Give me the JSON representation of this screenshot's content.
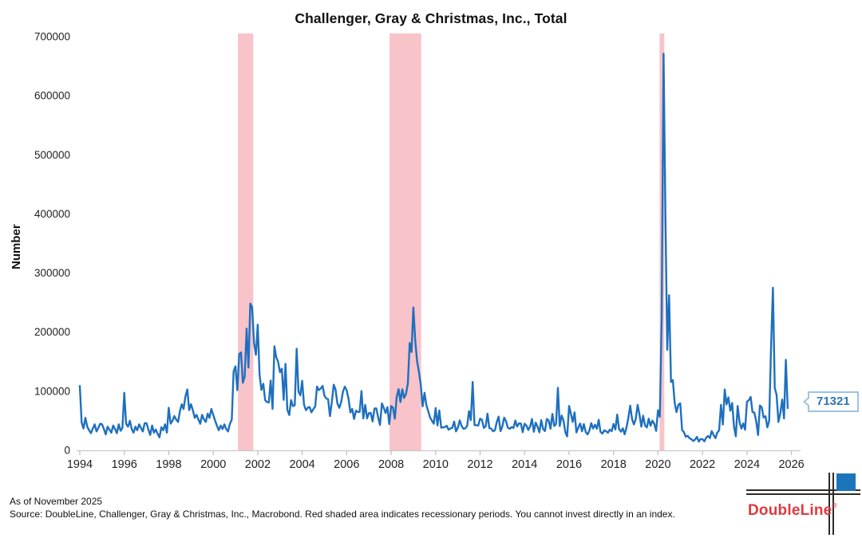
{
  "chart_data": {
    "type": "line",
    "title": "Challenger, Gray & Christmas, Inc., Total",
    "xlabel": "",
    "ylabel": "Number",
    "grid": false,
    "legend": "none",
    "frequency": "monthly",
    "x_start": "1994-01",
    "x_end": "2025-11",
    "xlim": [
      1994,
      2026.41
    ],
    "ylim": [
      0,
      700000
    ],
    "x_tick_labels": [
      "1994",
      "1996",
      "1998",
      "2000",
      "2002",
      "2004",
      "2006",
      "2008",
      "2010",
      "2012",
      "2014",
      "2016",
      "2018",
      "2020",
      "2022",
      "2024",
      "2026"
    ],
    "y_ticks": [
      0,
      100000,
      200000,
      300000,
      400000,
      500000,
      600000,
      700000
    ],
    "line_color": "#1e70bf",
    "recession_band_color": "#f8c3c9",
    "recession_bands": [
      {
        "start": 2001.11,
        "end": 2001.8
      },
      {
        "start": 2007.93,
        "end": 2009.35
      },
      {
        "start": 2020.07,
        "end": 2020.28
      }
    ],
    "latest_value": 71321,
    "values_monthly": [
      108946,
      47000,
      37000,
      55000,
      40000,
      34000,
      29000,
      37000,
      44000,
      32000,
      38000,
      45000,
      44000,
      36000,
      27000,
      40000,
      35000,
      30000,
      42000,
      36000,
      29000,
      44000,
      33000,
      38000,
      97379,
      45000,
      40000,
      50000,
      36000,
      30000,
      40000,
      34000,
      44000,
      38000,
      32000,
      46000,
      46000,
      35000,
      26000,
      42000,
      30000,
      35000,
      28000,
      22000,
      39000,
      34000,
      44000,
      30000,
      72000,
      45000,
      50000,
      58000,
      52000,
      48000,
      66000,
      78000,
      70000,
      91000,
      103000,
      68000,
      78000,
      68000,
      55000,
      60000,
      52000,
      45000,
      60000,
      52000,
      48000,
      62000,
      55000,
      70000,
      60000,
      50000,
      42000,
      34000,
      42000,
      36000,
      44000,
      36000,
      32000,
      45000,
      52000,
      133713,
      142208,
      101731,
      162867,
      165564,
      114387,
      124852,
      205975,
      140019,
      248332,
      242192,
      181412,
      161584,
      212704,
      128115,
      102315,
      112649,
      84978,
      81755,
      80966,
      118067,
      70057,
      176010,
      157508,
      150000,
      132222,
      138177,
      85396,
      146399,
      68623,
      59715,
      85117,
      74723,
      76506,
      171874,
      99452,
      93020,
      117556,
      77250,
      68034,
      72184,
      73368,
      64343,
      69572,
      74150,
      107863,
      101840,
      104530,
      109045,
      92351,
      87672,
      86396,
      57861,
      82283,
      110996,
      102971,
      79479,
      71836,
      81301,
      99279,
      107822,
      101840,
      87000,
      64000,
      70000,
      53000,
      67000,
      65000,
      65000,
      100315,
      54000,
      77000,
      54000,
      62975,
      63263,
      48997,
      70672,
      71115,
      55726,
      42897,
      79459,
      71739,
      63114,
      73140,
      44416,
      74986,
      72091,
      53579,
      90015,
      103522,
      81755,
      103312,
      88736,
      95094,
      112884,
      181640,
      166348,
      241749,
      186350,
      150411,
      132590,
      111182,
      74393,
      97373,
      76456,
      66404,
      55679,
      50349,
      45094,
      71482,
      42090,
      67611,
      38326,
      38810,
      39358,
      41676,
      34768,
      37151,
      37986,
      48711,
      32004,
      38519,
      50702,
      41528,
      36490,
      37135,
      41432,
      66414,
      51114,
      115730,
      42759,
      42474,
      41785,
      53486,
      51728,
      37880,
      40559,
      61887,
      37551,
      36855,
      32239,
      33816,
      47724,
      57081,
      32556,
      40430,
      55356,
      49255,
      38121,
      36398,
      39372,
      37701,
      50462,
      40289,
      45730,
      45314,
      30623,
      45107,
      41835,
      34399,
      40298,
      52961,
      31434,
      46887,
      40010,
      30477,
      51183,
      35940,
      32640,
      53041,
      50579,
      36594,
      61582,
      41034,
      44842,
      105696,
      41186,
      58877,
      50504,
      30953,
      23622,
      75114,
      61599,
      48207,
      64141,
      30157,
      38536,
      45346,
      32188,
      44324,
      30740,
      26936,
      33627,
      45934,
      36957,
      43310,
      36602,
      51692,
      31105,
      28307,
      33825,
      32346,
      29831,
      35038,
      32423,
      44653,
      35369,
      60357,
      36081,
      31517,
      37202,
      27122,
      38472,
      55285,
      75644,
      53073,
      43884,
      52988,
      76835,
      60587,
      40023,
      58577,
      41977,
      38845,
      53480,
      41557,
      50275,
      44569,
      32843,
      67735,
      56660,
      222288,
      671129,
      397016,
      170219,
      262649,
      115762,
      118804,
      80666,
      64797,
      77030,
      79552,
      34531,
      30603,
      22913,
      24586,
      20476,
      18942,
      15723,
      17895,
      22822,
      14875,
      19052,
      19064,
      15245,
      21387,
      24286,
      20712,
      32517,
      25810,
      20485,
      29989,
      33843,
      76835,
      43651,
      102943,
      77770,
      89703,
      66995,
      80089,
      40709,
      23697,
      75151,
      47457,
      36836,
      45510,
      34817,
      82307,
      84638,
      90309,
      64789,
      63816,
      48786,
      25885,
      75891,
      72821,
      55597,
      57727,
      38792,
      49795,
      172017,
      275240,
      105441,
      93816,
      47999,
      62075,
      85979,
      54064,
      153074,
      71321
    ]
  },
  "callout": {
    "label": "71321"
  },
  "footer": {
    "as_of": "As of November 2025",
    "source": "Source: DoubleLine, Challenger, Gray & Christmas, Inc., Macrobond. Red shaded area indicates recessionary periods. You cannot invest directly in an index."
  },
  "logo": {
    "brand": "DoubleLine",
    "registered_mark": "®"
  },
  "theme": {
    "line_color": "#1e70bf",
    "recession_band_color": "#f8c3c9",
    "callout_border": "#9dc3e6",
    "callout_text": "#2e75b6",
    "brand_red": "#e0393e",
    "brand_blue": "#1b75bb",
    "axis_line": "#c9c9c9",
    "tick_mark": "#bdbdbd",
    "tick_text": "#1f1f1f"
  }
}
